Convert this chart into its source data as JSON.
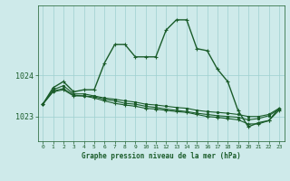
{
  "title": "Graphe pression niveau de la mer (hPa)",
  "bg_color": "#ceeaea",
  "plot_bg_color": "#ceeaea",
  "grid_color": "#9ecfcf",
  "line_color": "#1a5c2a",
  "ylim": [
    1022.4,
    1025.7
  ],
  "yticks": [
    1023,
    1024
  ],
  "xlim": [
    -0.5,
    23.5
  ],
  "xticks": [
    0,
    1,
    2,
    3,
    4,
    5,
    6,
    7,
    8,
    9,
    10,
    11,
    12,
    13,
    14,
    15,
    16,
    17,
    18,
    19,
    20,
    21,
    22,
    23
  ],
  "series": [
    {
      "y": [
        1023.3,
        1023.7,
        1023.85,
        1023.6,
        1023.65,
        1023.65,
        1024.3,
        1024.75,
        1024.75,
        1024.45,
        1024.45,
        1024.45,
        1025.1,
        1025.35,
        1025.35,
        1024.65,
        1024.6,
        1024.15,
        1023.85,
        1023.15,
        1022.75,
        1022.85,
        1022.9,
        1023.2
      ],
      "marker": "+",
      "ms": 3.5,
      "lw": 1.0
    },
    {
      "y": [
        1023.3,
        1023.65,
        1023.75,
        1023.55,
        1023.55,
        1023.5,
        1023.45,
        1023.42,
        1023.38,
        1023.35,
        1023.3,
        1023.28,
        1023.25,
        1023.22,
        1023.2,
        1023.15,
        1023.12,
        1023.1,
        1023.08,
        1023.05,
        1023.0,
        1023.0,
        1023.05,
        1023.2
      ],
      "marker": ".",
      "ms": 3.0,
      "lw": 0.8
    },
    {
      "y": [
        1023.3,
        1023.62,
        1023.68,
        1023.52,
        1023.5,
        1023.48,
        1023.42,
        1023.38,
        1023.32,
        1023.3,
        1023.25,
        1023.22,
        1023.18,
        1023.15,
        1023.12,
        1023.08,
        1023.05,
        1023.02,
        1023.0,
        1022.98,
        1022.92,
        1022.95,
        1023.02,
        1023.18
      ],
      "marker": ".",
      "ms": 3.0,
      "lw": 0.8
    },
    {
      "y": [
        1023.3,
        1023.6,
        1023.65,
        1023.5,
        1023.5,
        1023.45,
        1023.38,
        1023.32,
        1023.28,
        1023.25,
        1023.2,
        1023.18,
        1023.15,
        1023.12,
        1023.1,
        1023.05,
        1023.0,
        1022.98,
        1022.95,
        1022.92,
        1022.82,
        1022.82,
        1022.9,
        1023.15
      ],
      "marker": "+",
      "ms": 3.0,
      "lw": 0.8
    }
  ]
}
